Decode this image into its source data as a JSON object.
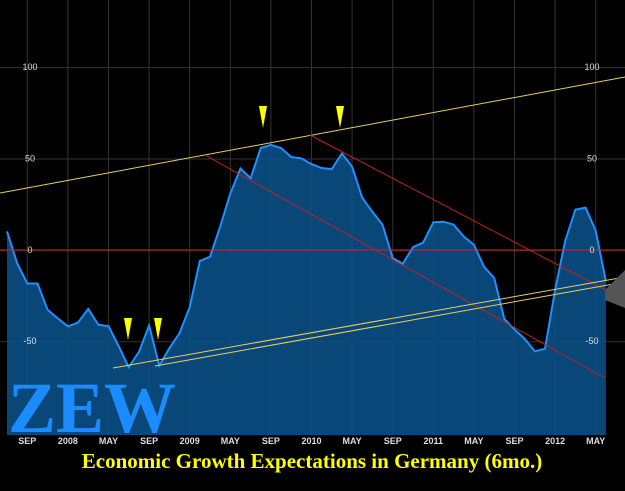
{
  "chart_data": {
    "type": "area",
    "title": "Economic Growth Expectations in Germany (6mo.)",
    "annotation": "ZEW",
    "categories": [
      null,
      null,
      "SEP",
      null,
      null,
      null,
      "2008",
      null,
      null,
      null,
      "MAY",
      null,
      null,
      null,
      "SEP",
      null,
      null,
      null,
      "2009",
      null,
      null,
      null,
      "MAY",
      null,
      null,
      null,
      "SEP",
      null,
      null,
      null,
      "2010",
      null,
      null,
      null,
      "MAY",
      null,
      null,
      null,
      "SEP",
      null,
      null,
      null,
      "2011",
      null,
      null,
      null,
      "MAY",
      null,
      null,
      null,
      "SEP",
      null,
      null,
      null,
      "2012",
      null,
      null,
      null,
      "MAY",
      null
    ],
    "values": [
      10.4,
      -6.9,
      -18.1,
      -18.1,
      -32.5,
      -37.2,
      -41.6,
      -39.5,
      -32.0,
      -40.7,
      -41.4,
      -52.4,
      -63.9,
      -55.5,
      -41.1,
      -63.0,
      -53.5,
      -45.2,
      -31.0,
      -5.8,
      -3.5,
      13.0,
      31.1,
      44.8,
      39.5,
      56.1,
      57.7,
      56.0,
      51.1,
      50.4,
      47.2,
      45.1,
      44.5,
      53.0,
      45.8,
      28.7,
      21.2,
      14.0,
      -4.3,
      -7.2,
      1.8,
      4.3,
      15.4,
      15.7,
      14.1,
      7.6,
      3.1,
      -9.0,
      -15.1,
      -37.6,
      -43.3,
      -48.3,
      -55.2,
      -53.8,
      -21.6,
      5.4,
      22.3,
      23.4,
      10.8,
      -16.9
    ],
    "color": "#1e90ff",
    "ylim": [
      -101,
      137
    ],
    "yticks": [
      -50,
      0,
      50,
      100
    ],
    "grid": true
  }
}
